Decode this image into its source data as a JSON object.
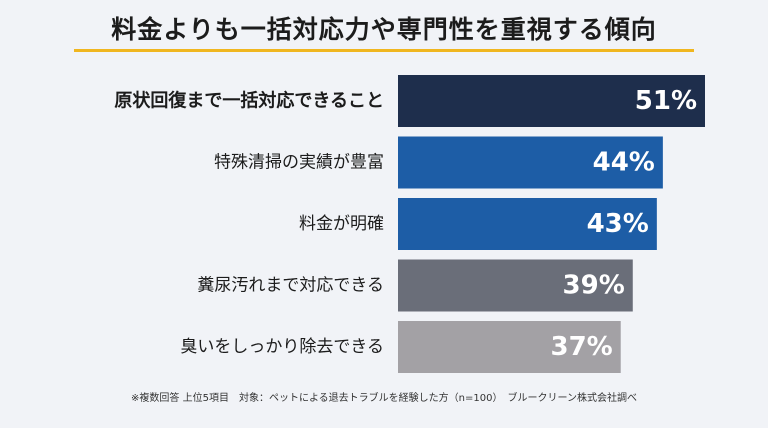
{
  "chart_data": {
    "type": "bar",
    "orientation": "horizontal",
    "title": "料金よりも一括対応力や専門性を重視する傾向",
    "categories": [
      "原状回復まで一括対応できること",
      "特殊清掃の実績が豊富",
      "料金が明確",
      "糞尿汚れまで対応できる",
      "臭いをしっかり除去できる"
    ],
    "values": [
      51,
      44,
      43,
      39,
      37
    ],
    "value_labels": [
      "51%",
      "44%",
      "43%",
      "39%",
      "37%"
    ],
    "unit": "%",
    "xlim": [
      0,
      51
    ],
    "grid": false,
    "legend": "none",
    "colors": [
      "#1e2e4c",
      "#1d5da6",
      "#1d5da6",
      "#6a6e79",
      "#a3a1a5"
    ],
    "highlight_index": 0,
    "footnote": "※複数回答 上位5項目　対象：ペットによる退去トラブルを経験した方（n=100）　ブルークリーン株式会社調べ"
  }
}
